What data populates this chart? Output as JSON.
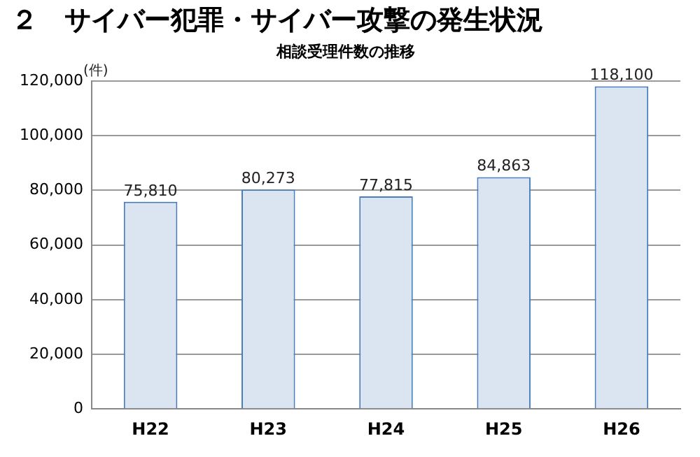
{
  "chart_data": {
    "type": "bar",
    "title": "２　サイバー犯罪・サイバー攻撃の発生状況",
    "subtitle": "相談受理件数の推移",
    "ylabel": "(件)",
    "categories": [
      "H22",
      "H23",
      "H24",
      "H25",
      "H26"
    ],
    "values": [
      75810,
      80273,
      77815,
      84863,
      118100
    ],
    "value_labels": [
      "75,810",
      "80,273",
      "77,815",
      "84,863",
      "118,100"
    ],
    "color": "#dbe5f1",
    "ylim": [
      0,
      120000
    ],
    "yticks": [
      0,
      {
        "value": 20000,
        "label": "20,000"
      },
      {
        "value": 40000,
        "label": "40,000"
      },
      {
        "value": 60000,
        "label": "60,000"
      },
      {
        "value": 80000,
        "label": "80,000"
      },
      {
        "value": 100000,
        "label": "100,000"
      },
      {
        "value": 120000,
        "label": "120,000"
      }
    ],
    "grid": "y"
  }
}
